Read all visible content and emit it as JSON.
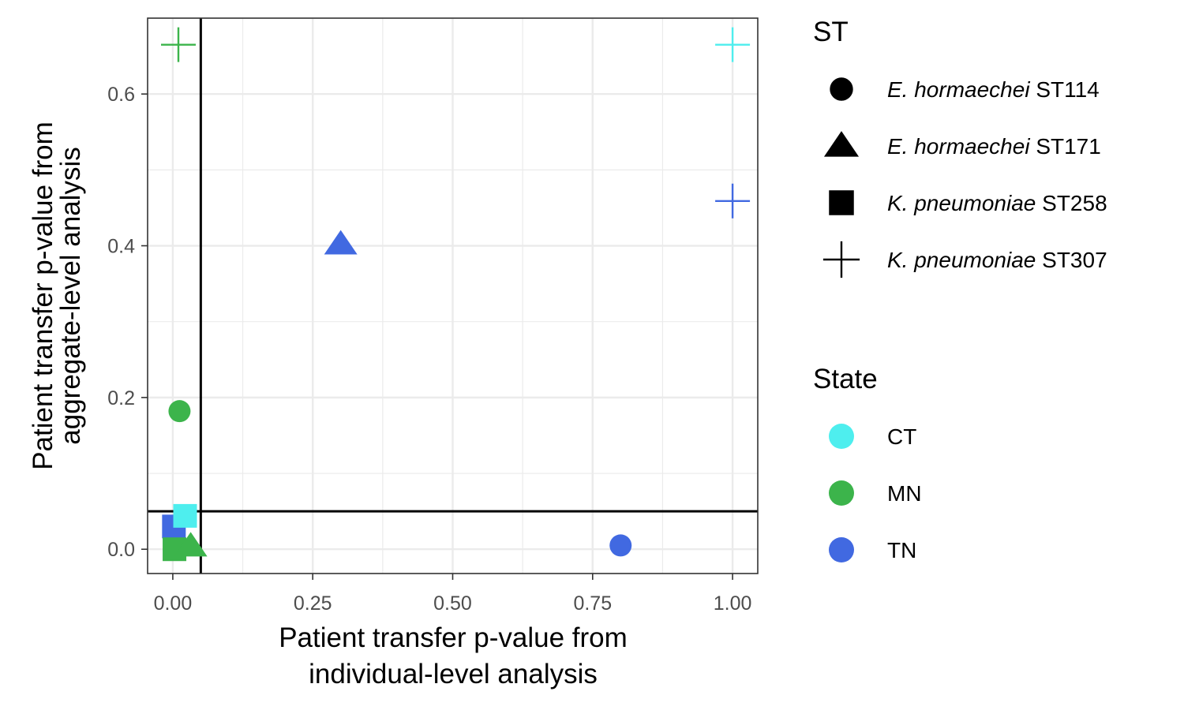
{
  "chart_data": {
    "type": "scatter",
    "xlabel": [
      "Patient transfer p-value from",
      "individual-level analysis"
    ],
    "ylabel": [
      "Patient transfer p-value from",
      "aggregate-level analysis"
    ],
    "xlim": [
      -0.045,
      1.045
    ],
    "ylim": [
      -0.032,
      0.7
    ],
    "x_ticks": [
      0.0,
      0.25,
      0.5,
      0.75,
      1.0
    ],
    "x_tick_labels": [
      "0.00",
      "0.25",
      "0.50",
      "0.75",
      "1.00"
    ],
    "y_ticks": [
      0.0,
      0.2,
      0.4,
      0.6
    ],
    "y_tick_labels": [
      "0.0",
      "0.2",
      "0.4",
      "0.6"
    ],
    "grid": true,
    "reference_lines": {
      "x": 0.05,
      "y": 0.05
    },
    "legend_placement": "right",
    "legends": {
      "shape": {
        "title": "ST",
        "items": [
          {
            "key": "E. hormaechei ST114",
            "species": "E. hormaechei",
            "st": "ST114",
            "shape": "circle"
          },
          {
            "key": "E. hormaechei ST171",
            "species": "E. hormaechei",
            "st": "ST171",
            "shape": "triangle"
          },
          {
            "key": "K. pneumoniae ST258",
            "species": "K. pneumoniae",
            "st": "ST258",
            "shape": "square"
          },
          {
            "key": "K. pneumoniae ST307",
            "species": "K. pneumoniae",
            "st": "ST307",
            "shape": "cross"
          }
        ]
      },
      "color": {
        "title": "State",
        "items": [
          {
            "key": "CT",
            "label": "CT",
            "color": "#4eeeee"
          },
          {
            "key": "MN",
            "label": "MN",
            "color": "#3cb44b"
          },
          {
            "key": "TN",
            "label": "TN",
            "color": "#4169e1"
          }
        ]
      }
    },
    "points": [
      {
        "st": "K. pneumoniae ST307",
        "state": "MN",
        "x": 0.01,
        "y": 0.665
      },
      {
        "st": "K. pneumoniae ST307",
        "state": "CT",
        "x": 1.0,
        "y": 0.665
      },
      {
        "st": "K. pneumoniae ST307",
        "state": "TN",
        "x": 1.0,
        "y": 0.459
      },
      {
        "st": "E. hormaechei ST171",
        "state": "TN",
        "x": 0.3,
        "y": 0.402
      },
      {
        "st": "E. hormaechei ST114",
        "state": "MN",
        "x": 0.012,
        "y": 0.182
      },
      {
        "st": "K. pneumoniae ST258",
        "state": "TN",
        "x": 0.002,
        "y": 0.03
      },
      {
        "st": "K. pneumoniae ST258",
        "state": "CT",
        "x": 0.022,
        "y": 0.044
      },
      {
        "st": "K. pneumoniae ST258",
        "state": "MN",
        "x": 0.003,
        "y": 0.0
      },
      {
        "st": "E. hormaechei ST171",
        "state": "MN",
        "x": 0.032,
        "y": 0.004
      },
      {
        "st": "E. hormaechei ST114",
        "state": "TN",
        "x": 0.8,
        "y": 0.005
      }
    ]
  }
}
